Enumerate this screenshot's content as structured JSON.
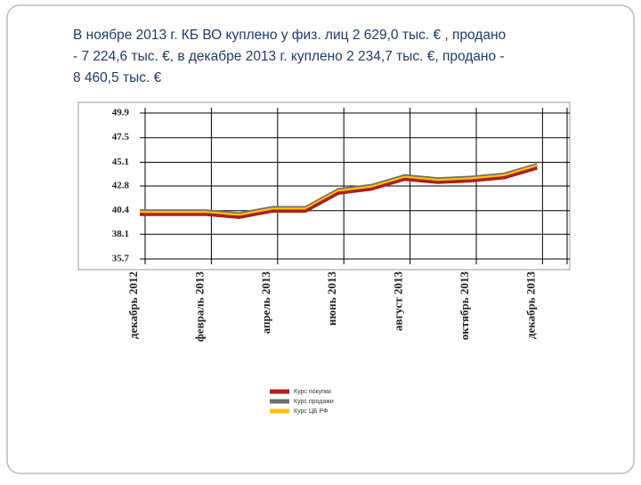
{
  "slide_text": [
    "В ноябре 2013 г. КБ ВО  куплено у физ. лиц 2 629,0  тыс. €  , продано",
    "- 7 224,6 тыс. €, в декабре 2013 г. куплено  2 234,7 тыс. €, продано -",
    "8 460,5 тыс. €"
  ],
  "chart_data": {
    "type": "line",
    "categories": [
      "декабрь 2012",
      null,
      "февраль 2013",
      null,
      "апрель 2013",
      null,
      "июнь 2013",
      null,
      "август 2013",
      null,
      "октябрь 2013",
      null,
      "декабрь 2013"
    ],
    "series": [
      {
        "name": "Курс покупки",
        "color": "#b01c1c",
        "values": [
          40.03,
          40.03,
          40.03,
          39.75,
          40.35,
          40.35,
          42.1,
          42.5,
          43.45,
          43.15,
          43.3,
          43.6,
          44.55
        ]
      },
      {
        "name": "Курс продажи",
        "color": "#6e6e6e",
        "values": [
          40.38,
          40.38,
          40.38,
          40.1,
          40.7,
          40.7,
          42.45,
          42.85,
          43.8,
          43.5,
          43.65,
          43.95,
          44.9
        ]
      },
      {
        "name": "Курс ЦБ РФ",
        "color": "#f5c400",
        "values": [
          40.23,
          40.23,
          40.23,
          39.95,
          40.55,
          40.55,
          42.3,
          42.7,
          43.65,
          43.35,
          43.5,
          43.8,
          44.75
        ]
      }
    ],
    "ylim": [
      35.7,
      49.9
    ],
    "yticks": [
      49.9,
      47.5,
      45.1,
      42.8,
      40.4,
      38.1,
      35.7
    ],
    "grid": true
  }
}
